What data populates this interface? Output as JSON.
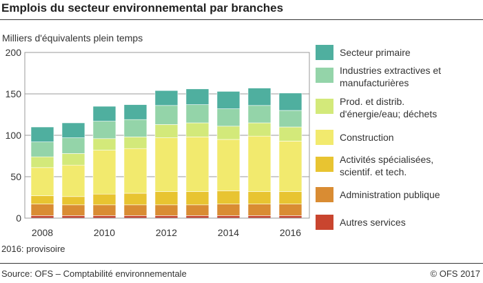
{
  "chart_data": {
    "type": "bar",
    "stacked": true,
    "title": "Emplois du secteur environnemental par branches",
    "ylabel": "Milliers d'équivalents plein temps",
    "ylim": [
      0,
      200
    ],
    "yticks": [
      0,
      50,
      100,
      150,
      200
    ],
    "grid": true,
    "legend_position": "right",
    "categories": [
      "2008",
      "2009",
      "2010",
      "2011",
      "2012",
      "2013",
      "2014",
      "2015",
      "2016"
    ],
    "xtick_labels": [
      "2008",
      "",
      "2010",
      "",
      "2012",
      "",
      "2014",
      "",
      "2016"
    ],
    "series": [
      {
        "name": "Autres services",
        "color": "#c9452f",
        "values": [
          3,
          3,
          3,
          3,
          3,
          3,
          3,
          3,
          3
        ]
      },
      {
        "name": "Administration publique",
        "color": "#d98c33",
        "values": [
          14,
          13,
          13,
          13,
          13,
          13,
          14,
          14,
          14
        ]
      },
      {
        "name": "Activités spécialisées, scientif. et tech.",
        "color": "#e8c431",
        "values": [
          10,
          10,
          13,
          14,
          16,
          16,
          16,
          15,
          15
        ]
      },
      {
        "name": "Construction",
        "color": "#f2ea6e",
        "values": [
          34,
          38,
          53,
          54,
          65,
          66,
          62,
          67,
          61
        ]
      },
      {
        "name": "Prod. et distrib. d'énergie/eau; déchets",
        "color": "#d3e97a",
        "values": [
          13,
          14,
          14,
          14,
          16,
          17,
          16,
          16,
          17
        ]
      },
      {
        "name": "Industries extractives et manufacturières",
        "color": "#94d4a9",
        "values": [
          18,
          19,
          21,
          21,
          23,
          22,
          21,
          21,
          20
        ]
      },
      {
        "name": "Secteur primaire",
        "color": "#4faf9f",
        "values": [
          18,
          18,
          18,
          18,
          18,
          19,
          21,
          21,
          21
        ]
      }
    ]
  },
  "note": "2016: provisoire",
  "source": "Source: OFS – Comptabilité environnementale",
  "copyright": "© OFS  2017"
}
